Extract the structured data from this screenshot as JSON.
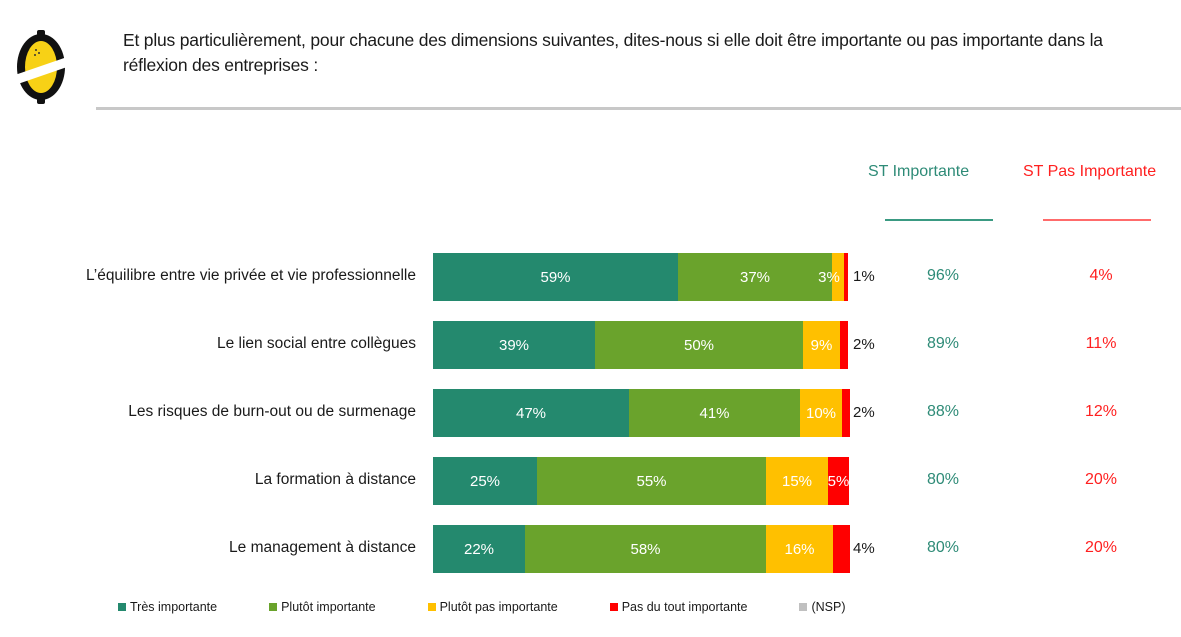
{
  "header": {
    "question": "Et plus particulièrement, pour chacune des dimensions suivantes, dites-nous si elle doit être importante ou pas importante dans la réflexion des entreprises :",
    "logo_icon": "lemon-logo-icon"
  },
  "summary_columns": {
    "important_label": "ST Importante",
    "not_important_label": "ST Pas Importante",
    "important_color": "#2e8b77",
    "not_important_color": "#ff2020"
  },
  "chart_data": {
    "type": "bar",
    "orientation": "horizontal",
    "stacked": true,
    "title": "",
    "xlabel": "",
    "ylabel": "",
    "xlim": [
      0,
      100
    ],
    "grid": false,
    "legend_position": "bottom",
    "categories": [
      "L’équilibre entre vie privée et vie professionnelle",
      "Le lien social entre collègues",
      "Les risques de burn-out ou de surmenage",
      "La formation à distance",
      "Le management à distance"
    ],
    "series": [
      {
        "name": "Très importante",
        "color": "#24896e",
        "values": [
          59,
          39,
          47,
          25,
          22
        ],
        "labels": [
          "59%",
          "39%",
          "47%",
          "25%",
          "22%"
        ]
      },
      {
        "name": "Plutôt importante",
        "color": "#6aa32c",
        "values": [
          37,
          50,
          41,
          55,
          58
        ],
        "labels": [
          "37%",
          "50%",
          "41%",
          "55%",
          "58%"
        ]
      },
      {
        "name": "Plutôt pas importante",
        "color": "#ffc000",
        "values": [
          3,
          9,
          10,
          15,
          16
        ],
        "labels": [
          "3%",
          "9%",
          "10%",
          "15%",
          "16%"
        ]
      },
      {
        "name": "Pas du tout importante",
        "color": "#ff0000",
        "values": [
          1,
          2,
          2,
          5,
          4
        ],
        "labels": [
          "1%",
          "2%",
          "2%",
          "5%",
          "4%"
        ]
      },
      {
        "name": "(NSP)",
        "color": "#c0c0c0",
        "values": [
          0,
          0,
          0,
          0,
          0
        ],
        "labels": [
          "",
          "",
          "",
          "",
          ""
        ]
      }
    ],
    "st_importante": [
      "96%",
      "89%",
      "88%",
      "80%",
      "80%"
    ],
    "st_pas_importante": [
      "4%",
      "11%",
      "12%",
      "20%",
      "20%"
    ]
  }
}
